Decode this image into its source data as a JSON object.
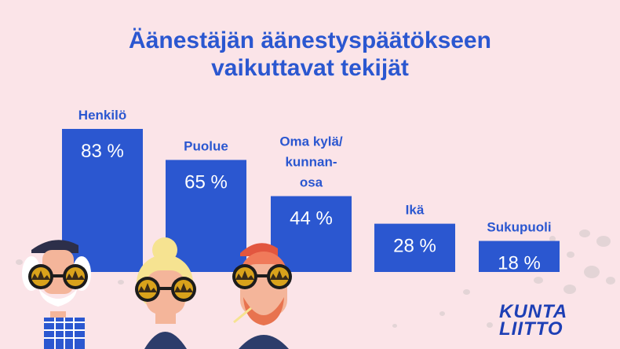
{
  "title_line1": "Äänestäjän äänestyspäätökseen",
  "title_line2": "vaikuttavat tekijät",
  "logo": "KUNTA LIITTO",
  "colors": {
    "background": "#fbe4e8",
    "bar": "#2b57d0",
    "text": "#2b57d0"
  },
  "chart_data": {
    "type": "bar",
    "title": "Äänestäjän äänestyspäätökseen vaikuttavat tekijät",
    "categories": [
      "Henkilö",
      "Puolue",
      "Oma kylä/kunnanosa",
      "Ikä",
      "Sukupuoli"
    ],
    "category_lines": [
      [
        "Henkilö"
      ],
      [
        "Puolue"
      ],
      [
        "Oma kylä/",
        "kunnan-",
        "osa"
      ],
      [
        "Ikä"
      ],
      [
        "Sukupuoli"
      ]
    ],
    "values": [
      83,
      65,
      44,
      28,
      18
    ],
    "value_labels": [
      "83 %",
      "65 %",
      "44 %",
      "28 %",
      "18 %"
    ],
    "unit": "%",
    "ylim": [
      0,
      100
    ],
    "grid": false,
    "legend": "none"
  }
}
